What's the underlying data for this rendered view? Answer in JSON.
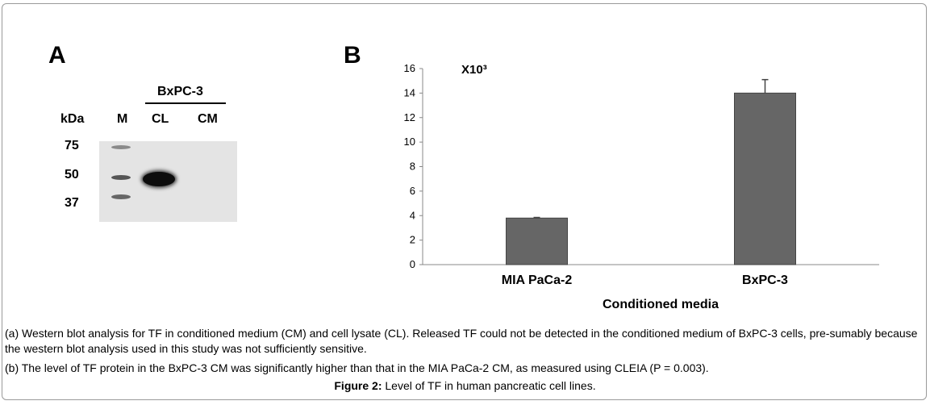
{
  "panels": {
    "a": {
      "letter": "A",
      "group_label": "BxPC-3",
      "kda_label": "kDa",
      "lanes": [
        "M",
        "CL",
        "CM"
      ],
      "markers": [
        "75",
        "50",
        "37"
      ]
    },
    "b": {
      "letter": "B"
    }
  },
  "chart_data": {
    "type": "bar",
    "categories": [
      "MIA PaCa-2",
      "BxPC-3"
    ],
    "values": [
      3.8,
      14.0
    ],
    "errors": [
      0.05,
      1.1
    ],
    "ylim": [
      0,
      16
    ],
    "yticks": [
      "0",
      "2",
      "4",
      "6",
      "8",
      "10",
      "12",
      "14",
      "16"
    ],
    "multiplier": "X10³",
    "xlabel": "Conditioned media",
    "ylabel": "",
    "grid": false,
    "bar_color": "#666666"
  },
  "captions": {
    "a": "(a) Western blot analysis for TF in conditioned medium (CM) and cell lysate (CL). Released TF could not be detected in the conditioned medium of BxPC-3 cells, pre-sumably because the western blot analysis used in this study was not sufficiently sensitive.",
    "b": "(b) The level of TF protein in the BxPC-3 CM was significantly higher than that in the MIA PaCa-2 CM, as measured using CLEIA (P = 0.003).",
    "figure_label": "Figure 2:",
    "figure_text": " Level of TF in human pancreatic cell lines."
  }
}
